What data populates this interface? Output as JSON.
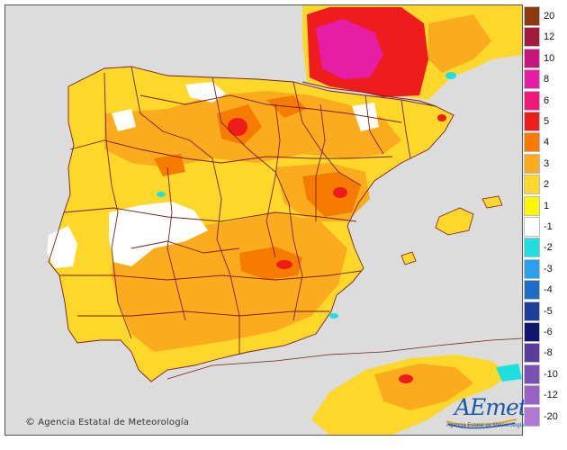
{
  "credit": "Agencia Estatal de Meteorología",
  "logo": {
    "text": "AEmet",
    "subtitle": "Agencia Estatal de Meteorología"
  },
  "legend": {
    "items": [
      {
        "label": "20",
        "color": "#8b3a0e"
      },
      {
        "label": "12",
        "color": "#a31a3c"
      },
      {
        "label": "10",
        "color": "#c8147c"
      },
      {
        "label": "8",
        "color": "#e61ea6"
      },
      {
        "label": "6",
        "color": "#f0197a"
      },
      {
        "label": "5",
        "color": "#ee1c1c"
      },
      {
        "label": "4",
        "color": "#f57c00"
      },
      {
        "label": "3",
        "color": "#fbac1e"
      },
      {
        "label": "2",
        "color": "#fdd72a"
      },
      {
        "label": "1",
        "color": "#fff700"
      },
      {
        "label": "-1",
        "color": "#ffffff"
      },
      {
        "label": "-2",
        "color": "#1ee0e0"
      },
      {
        "label": "-3",
        "color": "#2aa0f0"
      },
      {
        "label": "-4",
        "color": "#1e6ec8"
      },
      {
        "label": "-5",
        "color": "#1c3f9b"
      },
      {
        "label": "-6",
        "color": "#10186e"
      },
      {
        "label": "-8",
        "color": "#5a3c9c"
      },
      {
        "label": "-10",
        "color": "#7a50b4"
      },
      {
        "label": "-12",
        "color": "#9a62c4"
      },
      {
        "label": "-20",
        "color": "#b078d0"
      }
    ]
  }
}
